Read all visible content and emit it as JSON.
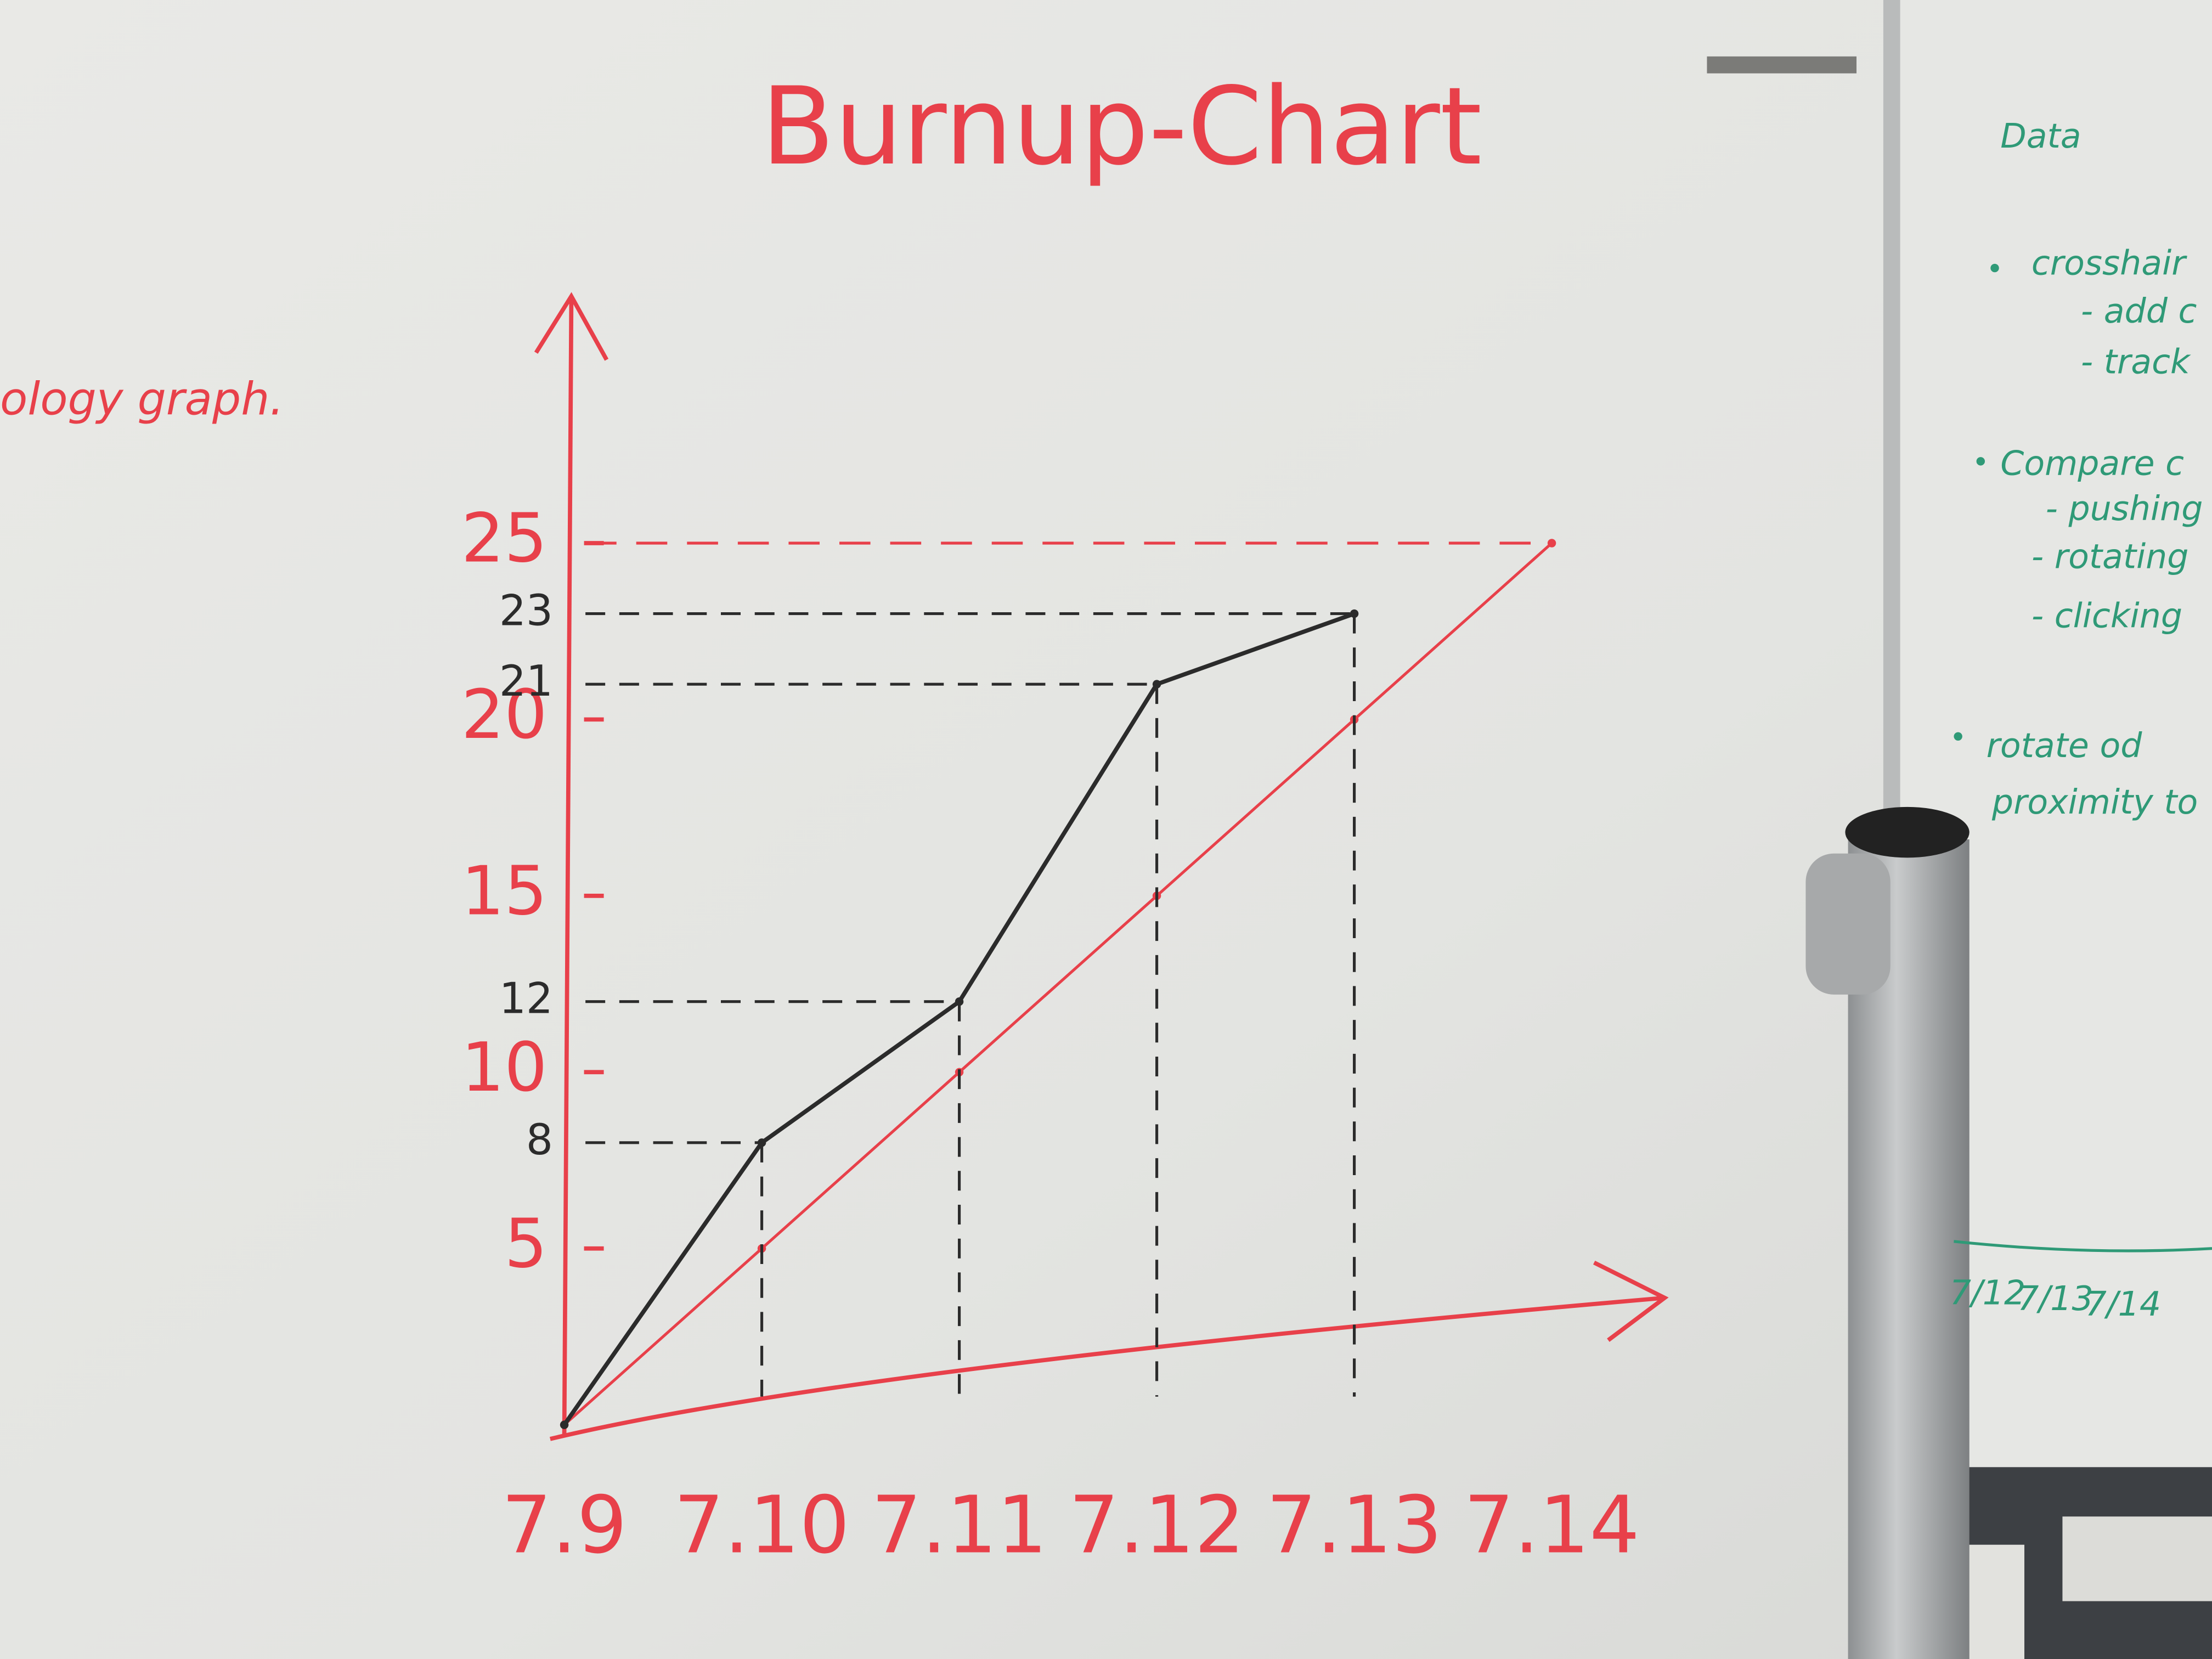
{
  "chart_data": {
    "type": "line",
    "title": "Burnup-Chart",
    "categories": [
      "7.9",
      "7.10",
      "7.11",
      "7.12",
      "7.13",
      "7.14"
    ],
    "series": [
      {
        "color": "#e8404a",
        "values": [
          0,
          5,
          10,
          15,
          20,
          25
        ]
      },
      {
        "color": "#2b2b2b",
        "values": [
          0,
          8,
          12,
          21,
          23,
          null
        ]
      }
    ],
    "ylim": [
      0,
      32
    ],
    "yticks": [
      5,
      10,
      15,
      20,
      25
    ],
    "marked_values": [
      8,
      12,
      21,
      23
    ],
    "axis_color": "#e8404a"
  },
  "whiteboard_notes": [
    "ology graph.",
    "Data",
    "crosshair",
    "- add c",
    "- track",
    "Compare c",
    "- pushing",
    "- rotating",
    "- clicking",
    "rotate od",
    "proximity to",
    "7/12",
    "7/13",
    "7/14"
  ]
}
